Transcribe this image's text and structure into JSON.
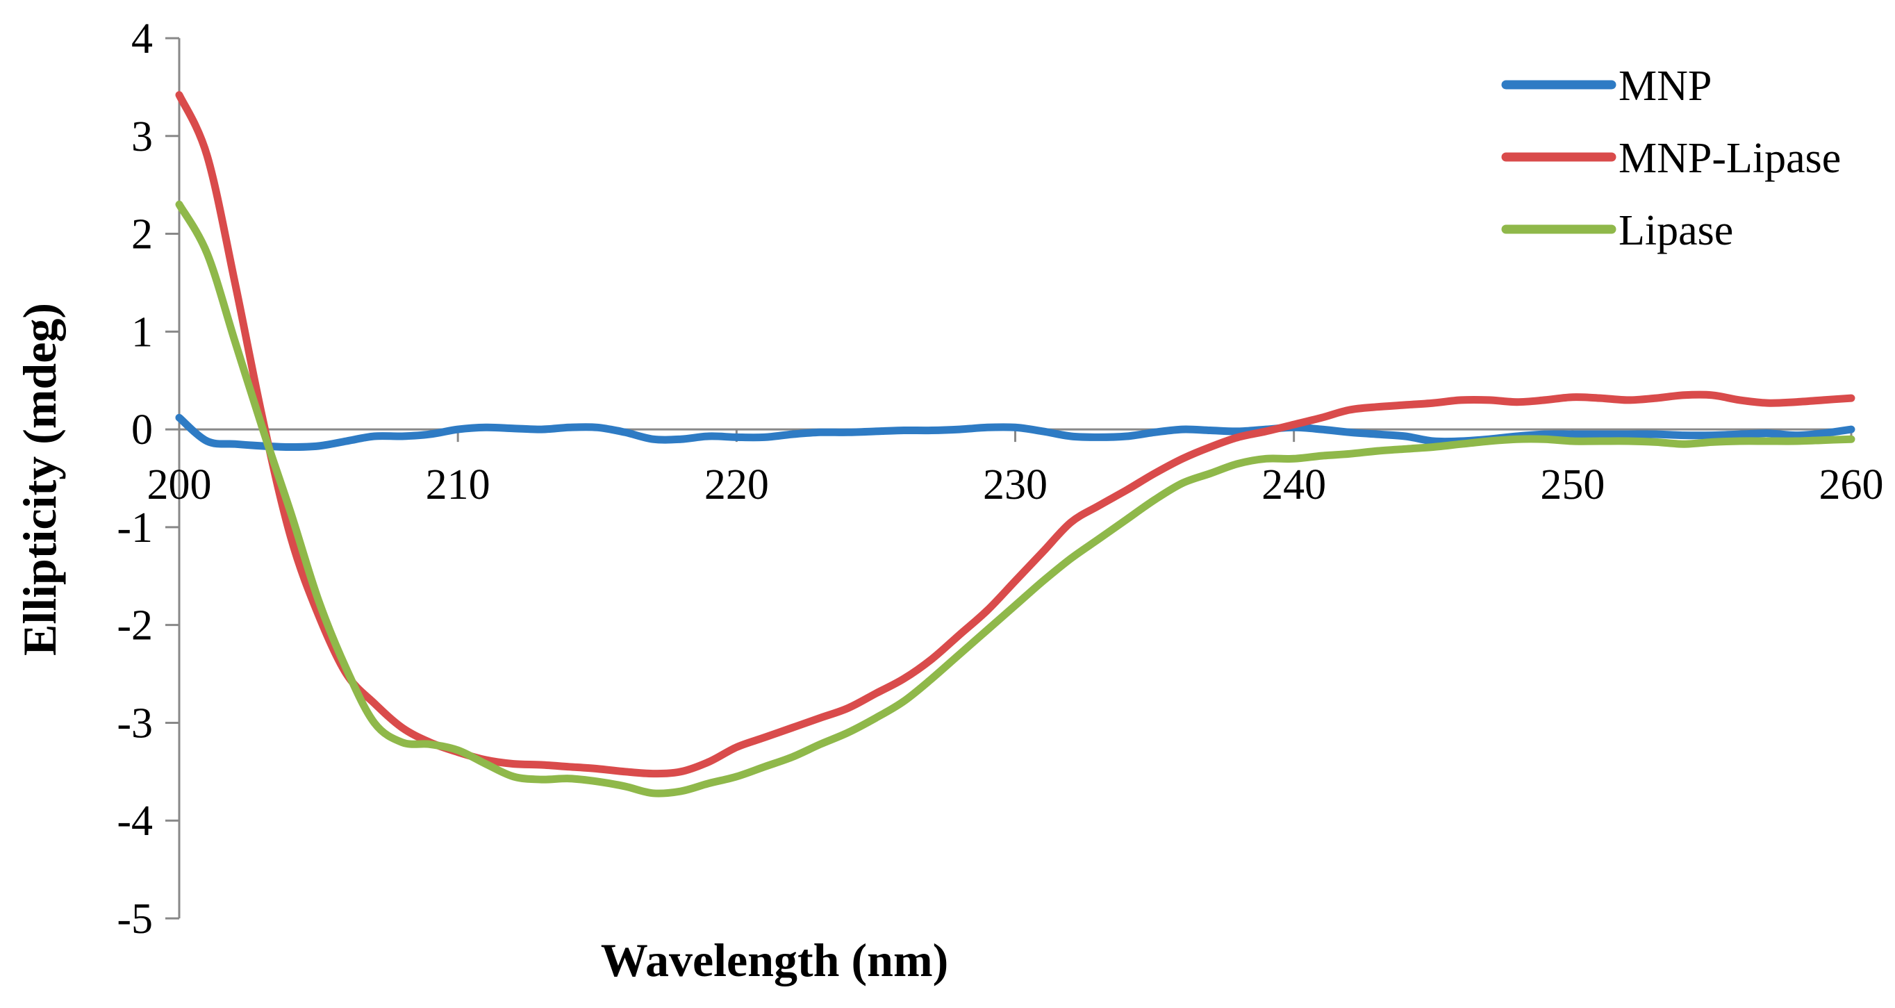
{
  "chart_data": {
    "type": "line",
    "title": "",
    "xlabel": "Wavelength (nm)",
    "ylabel": "Ellipticity (mdeg)",
    "xlim": [
      200,
      260
    ],
    "ylim": [
      -5,
      4
    ],
    "xticks": [
      200,
      210,
      220,
      230,
      240,
      250,
      260
    ],
    "yticks": [
      4,
      3,
      2,
      1,
      0,
      -1,
      -2,
      -3,
      -4,
      -5
    ],
    "grid": false,
    "legend_position": "top-right",
    "series": [
      {
        "name": "MNP",
        "color": "#2E7BC4",
        "x": [
          200,
          201,
          202,
          203,
          204,
          205,
          206,
          207,
          208,
          209,
          210,
          211,
          212,
          213,
          214,
          215,
          216,
          217,
          218,
          219,
          220,
          221,
          222,
          223,
          224,
          225,
          226,
          227,
          228,
          229,
          230,
          231,
          232,
          233,
          234,
          235,
          236,
          237,
          238,
          239,
          240,
          241,
          242,
          243,
          244,
          245,
          246,
          247,
          248,
          249,
          250,
          251,
          252,
          253,
          254,
          255,
          256,
          257,
          258,
          259,
          260
        ],
        "y": [
          0.12,
          -0.12,
          -0.15,
          -0.17,
          -0.18,
          -0.17,
          -0.12,
          -0.07,
          -0.07,
          -0.05,
          0.0,
          0.02,
          0.01,
          0.0,
          0.02,
          0.02,
          -0.03,
          -0.1,
          -0.1,
          -0.07,
          -0.08,
          -0.08,
          -0.05,
          -0.03,
          -0.03,
          -0.02,
          -0.01,
          -0.01,
          0.0,
          0.02,
          0.02,
          -0.02,
          -0.07,
          -0.08,
          -0.07,
          -0.03,
          0.0,
          -0.01,
          -0.02,
          0.0,
          0.02,
          0.0,
          -0.03,
          -0.05,
          -0.07,
          -0.12,
          -0.12,
          -0.1,
          -0.07,
          -0.05,
          -0.05,
          -0.05,
          -0.05,
          -0.05,
          -0.06,
          -0.06,
          -0.05,
          -0.04,
          -0.06,
          -0.04,
          0.0
        ]
      },
      {
        "name": "MNP-Lipase",
        "color": "#D94B4B",
        "x": [
          200,
          201,
          202,
          203,
          204,
          205,
          206,
          207,
          208,
          209,
          210,
          211,
          212,
          213,
          214,
          215,
          216,
          217,
          218,
          219,
          220,
          221,
          222,
          223,
          224,
          225,
          226,
          227,
          228,
          229,
          230,
          231,
          232,
          233,
          234,
          235,
          236,
          237,
          238,
          239,
          240,
          241,
          242,
          243,
          244,
          245,
          246,
          247,
          248,
          249,
          250,
          251,
          252,
          253,
          254,
          255,
          256,
          257,
          258,
          259,
          260
        ],
        "y": [
          3.42,
          2.8,
          1.5,
          0.1,
          -1.1,
          -1.9,
          -2.5,
          -2.8,
          -3.05,
          -3.2,
          -3.3,
          -3.38,
          -3.42,
          -3.43,
          -3.45,
          -3.47,
          -3.5,
          -3.52,
          -3.5,
          -3.4,
          -3.25,
          -3.15,
          -3.05,
          -2.95,
          -2.85,
          -2.7,
          -2.55,
          -2.35,
          -2.1,
          -1.85,
          -1.55,
          -1.25,
          -0.95,
          -0.78,
          -0.62,
          -0.45,
          -0.3,
          -0.18,
          -0.08,
          -0.02,
          0.05,
          0.12,
          0.2,
          0.23,
          0.25,
          0.27,
          0.3,
          0.3,
          0.28,
          0.3,
          0.33,
          0.32,
          0.3,
          0.32,
          0.35,
          0.35,
          0.3,
          0.27,
          0.28,
          0.3,
          0.32
        ]
      },
      {
        "name": "Lipase",
        "color": "#8FB84A",
        "x": [
          200,
          201,
          202,
          203,
          204,
          205,
          206,
          207,
          208,
          209,
          210,
          211,
          212,
          213,
          214,
          215,
          216,
          217,
          218,
          219,
          220,
          221,
          222,
          223,
          224,
          225,
          226,
          227,
          228,
          229,
          230,
          231,
          232,
          233,
          234,
          235,
          236,
          237,
          238,
          239,
          240,
          241,
          242,
          243,
          244,
          245,
          246,
          247,
          248,
          249,
          250,
          251,
          252,
          253,
          254,
          255,
          256,
          257,
          258,
          259,
          260
        ],
        "y": [
          2.3,
          1.8,
          0.9,
          0.0,
          -0.85,
          -1.75,
          -2.45,
          -3.0,
          -3.2,
          -3.22,
          -3.28,
          -3.42,
          -3.55,
          -3.58,
          -3.57,
          -3.6,
          -3.65,
          -3.72,
          -3.7,
          -3.62,
          -3.55,
          -3.45,
          -3.35,
          -3.22,
          -3.1,
          -2.95,
          -2.78,
          -2.55,
          -2.3,
          -2.05,
          -1.8,
          -1.55,
          -1.32,
          -1.12,
          -0.92,
          -0.72,
          -0.55,
          -0.45,
          -0.35,
          -0.3,
          -0.3,
          -0.27,
          -0.25,
          -0.22,
          -0.2,
          -0.18,
          -0.15,
          -0.12,
          -0.1,
          -0.1,
          -0.12,
          -0.12,
          -0.12,
          -0.13,
          -0.15,
          -0.13,
          -0.12,
          -0.12,
          -0.12,
          -0.11,
          -0.1
        ]
      }
    ]
  }
}
